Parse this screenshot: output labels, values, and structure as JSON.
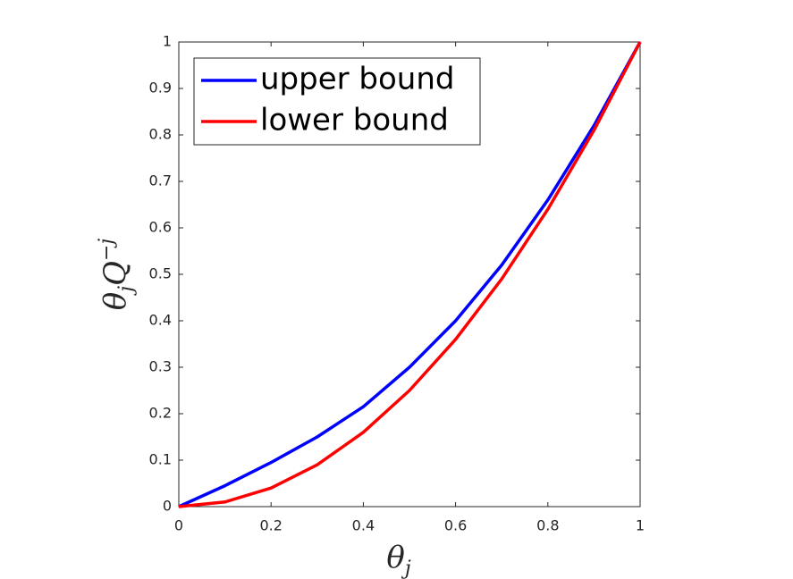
{
  "chart_data": {
    "type": "line",
    "x_label": [
      "θ",
      "j"
    ],
    "y_label": [
      "θ",
      "j",
      "Q",
      "−j"
    ],
    "x": [
      0,
      0.1,
      0.2,
      0.3,
      0.4,
      0.5,
      0.6,
      0.7,
      0.8,
      0.9,
      1
    ],
    "series": [
      {
        "name": "upper bound",
        "color": "#0000ff",
        "values": [
          0,
          0.045,
          0.095,
          0.15,
          0.215,
          0.3,
          0.4,
          0.52,
          0.66,
          0.82,
          1
        ]
      },
      {
        "name": "lower bound",
        "color": "#ff0000",
        "values": [
          0,
          0.01,
          0.04,
          0.09,
          0.16,
          0.25,
          0.36,
          0.49,
          0.64,
          0.81,
          1
        ]
      }
    ],
    "xlim": [
      0,
      1
    ],
    "ylim": [
      0,
      1
    ],
    "xticks": [
      0,
      0.2,
      0.4,
      0.6,
      0.8,
      1
    ],
    "yticks": [
      0,
      0.1,
      0.2,
      0.3,
      0.4,
      0.5,
      0.6,
      0.7,
      0.8,
      0.9,
      1
    ],
    "grid": false,
    "legend": "upper left"
  }
}
